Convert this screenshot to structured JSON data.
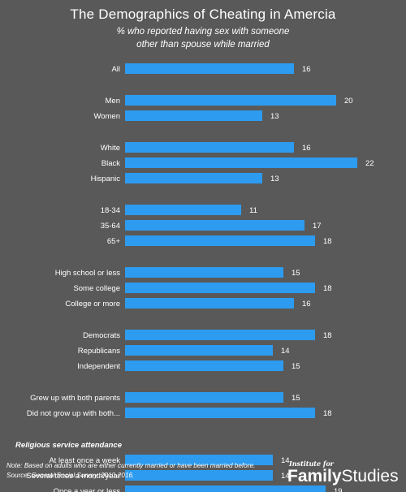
{
  "chart_data": {
    "type": "bar",
    "orientation": "horizontal",
    "title": "The Demographics of Cheating in Amercia",
    "subtitle": [
      "% who reported having sex with someone",
      "other than spouse while married"
    ],
    "bar_color": "#2d9bef",
    "groups": [
      {
        "bars": [
          {
            "label": "All",
            "value": 16
          }
        ]
      },
      {
        "bars": [
          {
            "label": "Men",
            "value": 20
          },
          {
            "label": "Women",
            "value": 13
          }
        ]
      },
      {
        "bars": [
          {
            "label": "White",
            "value": 16
          },
          {
            "label": "Black",
            "value": 22
          },
          {
            "label": "Hispanic",
            "value": 13
          }
        ]
      },
      {
        "bars": [
          {
            "label": "18-34",
            "value": 11
          },
          {
            "label": "35-64",
            "value": 17
          },
          {
            "label": "65+",
            "value": 18
          }
        ]
      },
      {
        "bars": [
          {
            "label": "High school or less",
            "value": 15
          },
          {
            "label": "Some college",
            "value": 18
          },
          {
            "label": "College or more",
            "value": 16
          }
        ]
      },
      {
        "bars": [
          {
            "label": "Democrats",
            "value": 18
          },
          {
            "label": "Republicans",
            "value": 14
          },
          {
            "label": "Independent",
            "value": 15
          }
        ]
      },
      {
        "bars": [
          {
            "label": "Grew up with both parents",
            "value": 15
          },
          {
            "label": "Did not grow up with both...",
            "value": 18
          }
        ]
      },
      {
        "heading": "Religious service attendance",
        "bars": [
          {
            "label": "At least once a week",
            "value": 14
          },
          {
            "label": "Several times a month/year",
            "value": 14
          },
          {
            "label": "Once a year or less",
            "value": 19
          }
        ]
      }
    ]
  },
  "note": "Note: Based on adults who are either currently married or have been married before.",
  "source": "Source: General Social Survey, 2010-2016.",
  "logo": {
    "small_text": "Institute for",
    "bold_text": "Family",
    "text": "Studies"
  }
}
